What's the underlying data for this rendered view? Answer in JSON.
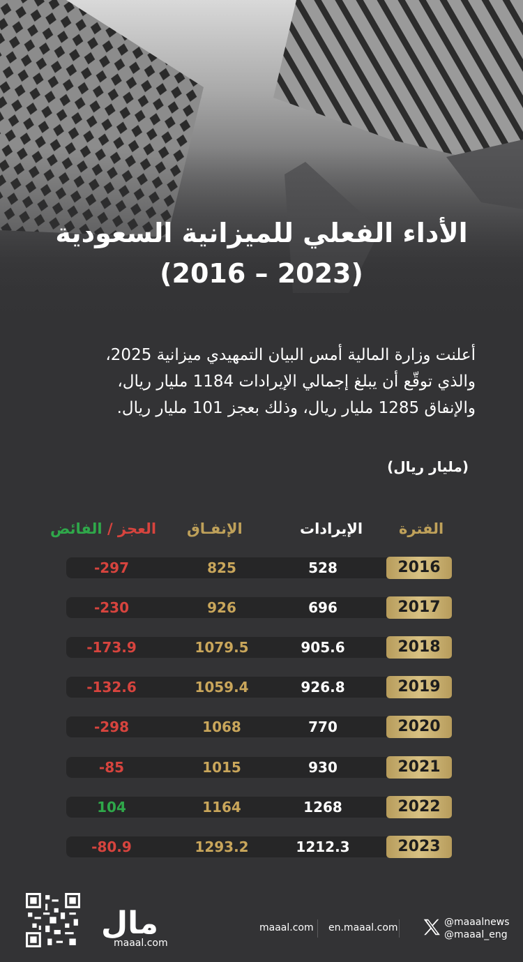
{
  "title": {
    "line1": "الأداء الفعلي للميزانية السعودية",
    "line2": "(2016 – 2023)"
  },
  "intro": [
    "أعلنت وزارة المالية أمس البيان التمهيدي ميزانية 2025،",
    "والذي توقّع أن يبلغ إجمالي الإيرادات 1184 مليار ريال،",
    "والإنفاق 1285 مليار ريال، وذلك بعجز 101 مليار ريال."
  ],
  "unit": "(مليار ريال)",
  "columns": {
    "period": "الفترة",
    "revenue": "الإيرادات",
    "expenditure": "الإنفـاق",
    "deficit": "العجز",
    "separator": "/",
    "surplus": "الفائض"
  },
  "chart_data": {
    "type": "table",
    "columns": [
      "الفترة",
      "الإيرادات",
      "الإنفـاق",
      "العجز / الفائض"
    ],
    "rows": [
      {
        "year": "2016",
        "revenue": "528",
        "expenditure": "825",
        "balance": "-297"
      },
      {
        "year": "2017",
        "revenue": "696",
        "expenditure": "926",
        "balance": "-230"
      },
      {
        "year": "2018",
        "revenue": "905.6",
        "expenditure": "1079.5",
        "balance": "-173.9"
      },
      {
        "year": "2019",
        "revenue": "926.8",
        "expenditure": "1059.4",
        "balance": "-132.6"
      },
      {
        "year": "2020",
        "revenue": "770",
        "expenditure": "1068",
        "balance": "-298"
      },
      {
        "year": "2021",
        "revenue": "930",
        "expenditure": "1015",
        "balance": "-85"
      },
      {
        "year": "2022",
        "revenue": "1268",
        "expenditure": "1164",
        "balance": "104"
      },
      {
        "year": "2023",
        "revenue": "1212.3",
        "expenditure": "1293.2",
        "balance": "-80.9"
      }
    ]
  },
  "colors": {
    "gold": "#bfa15a",
    "deficit": "#d7443e",
    "surplus": "#2fa84a",
    "background": "#333335"
  },
  "footer": {
    "logo_ar": "مال",
    "logo_en": "maaal.com",
    "links": [
      "maaal.com",
      "en.maaal.com"
    ],
    "handles": [
      "@maaalnews",
      "@maaal_eng"
    ],
    "icons": [
      "qr-code-icon",
      "x-logo-icon"
    ]
  }
}
